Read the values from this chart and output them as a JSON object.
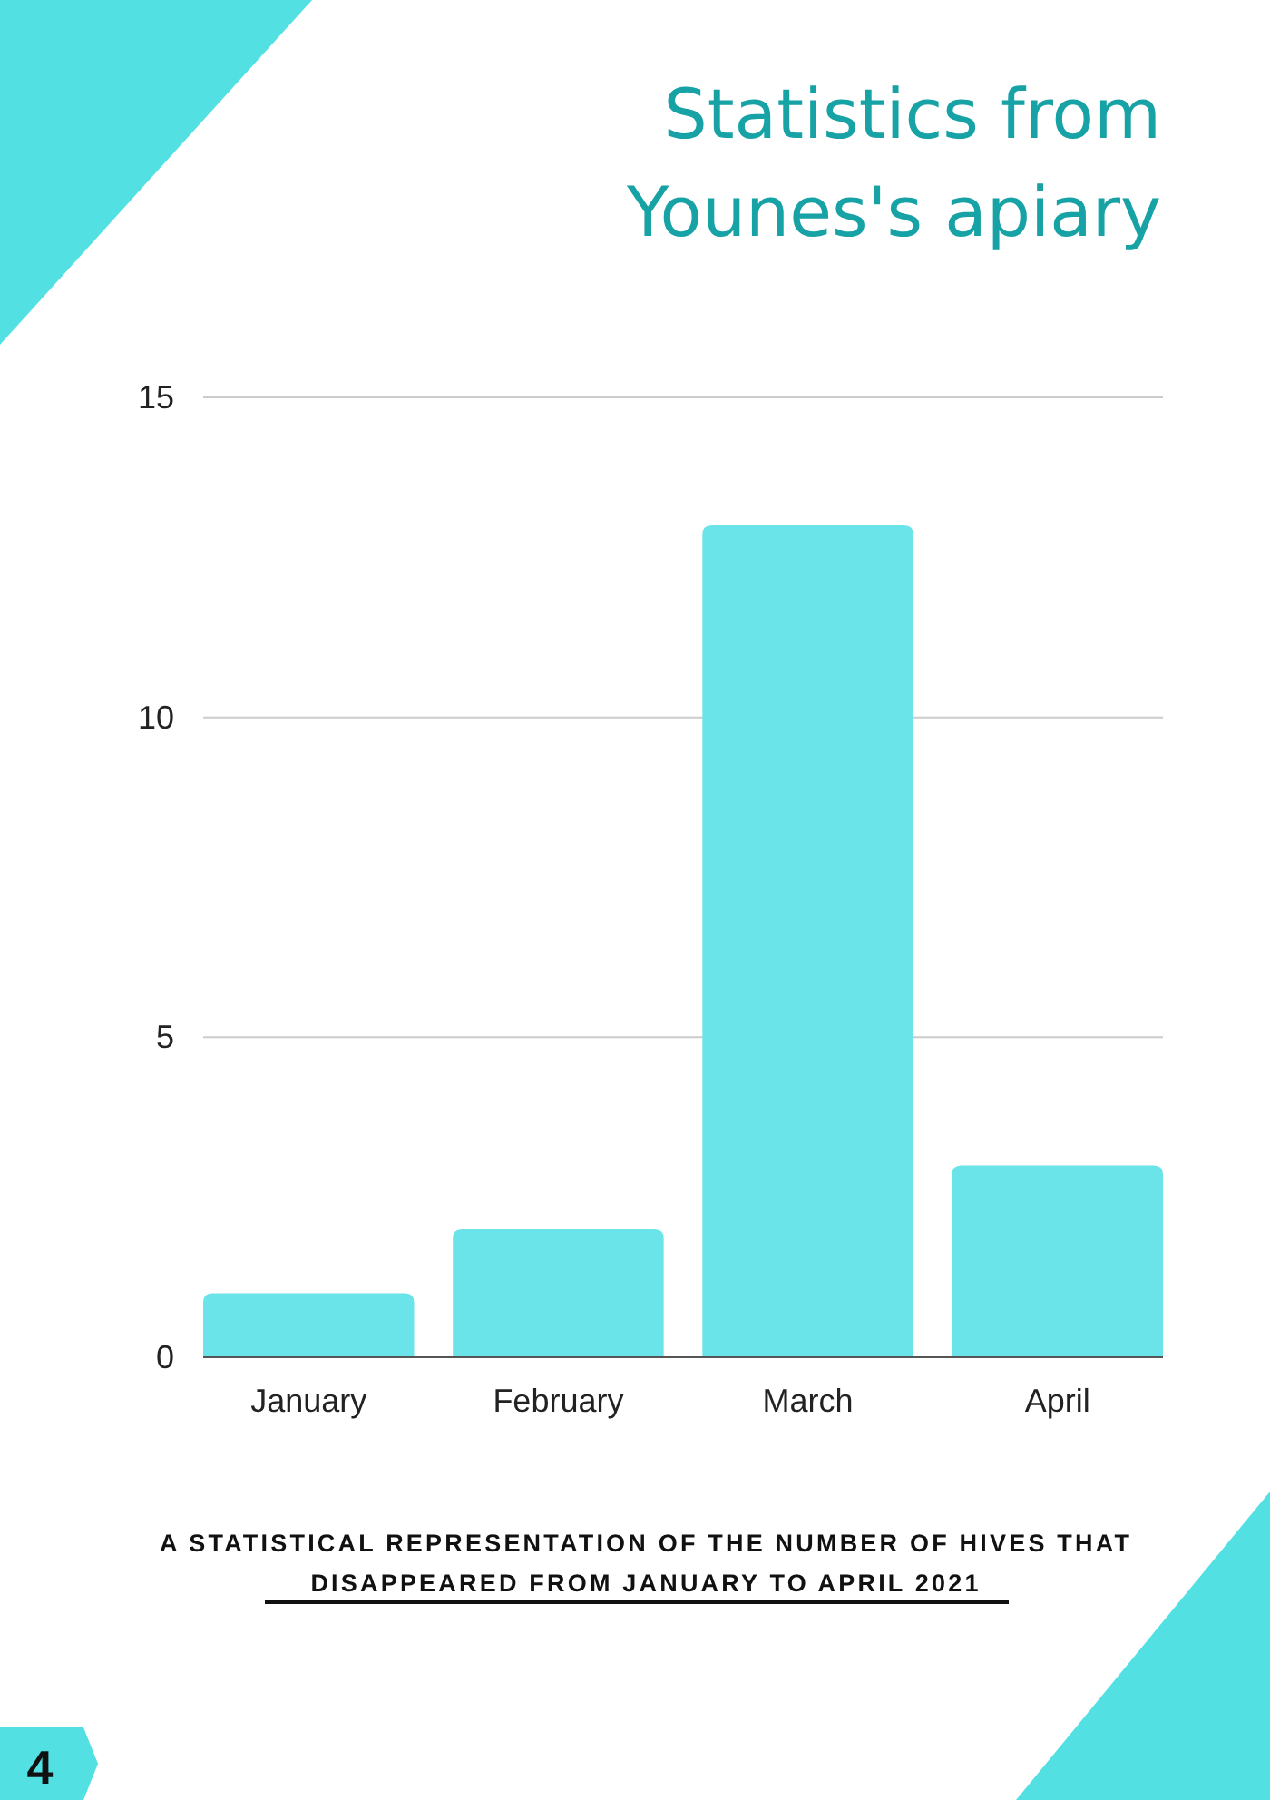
{
  "chart_data": {
    "type": "bar",
    "title": "Statistics from\nYounes's apiary",
    "categories": [
      "January",
      "February",
      "March",
      "April"
    ],
    "values": [
      1,
      2,
      13,
      3
    ],
    "color": "#6ae4e8",
    "ylim": [
      0,
      15
    ],
    "yticks": [
      0,
      5,
      10,
      15
    ],
    "grid": "y",
    "annotations": [
      "A STATISTICAL REPRESENTATION OF THE NUMBER OF HIVES THAT\nDISAPPEARED FROM JANUARY TO APRIL 2021",
      "4"
    ]
  }
}
